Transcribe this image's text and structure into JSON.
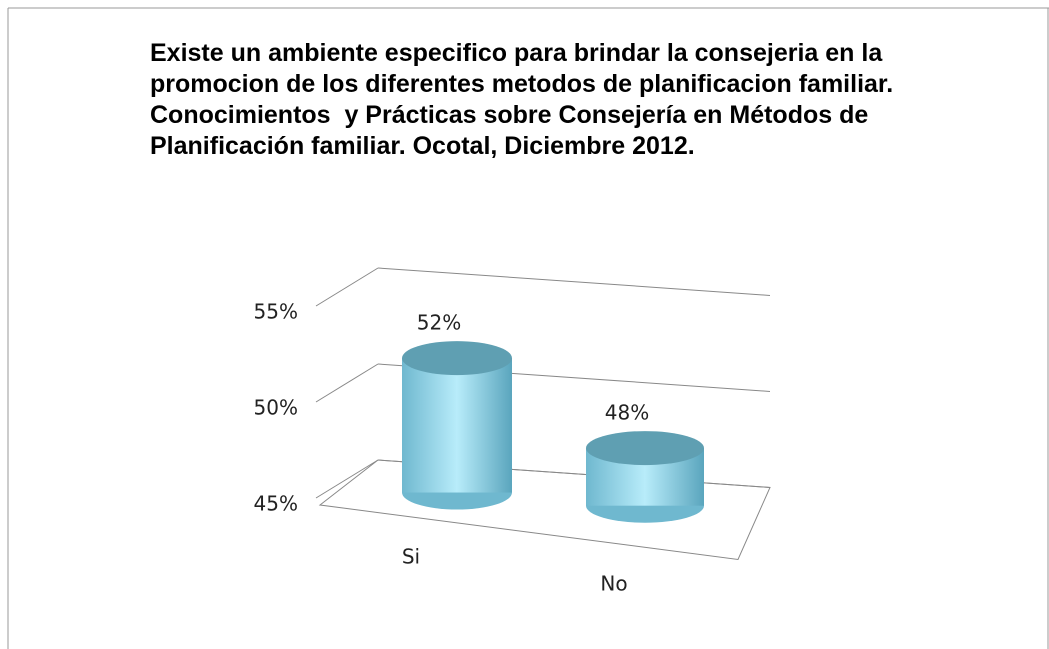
{
  "chart_data": {
    "type": "bar3d",
    "title": "Existe un ambiente especifico para brindar la consejeria en la promocion de los diferentes metodos de planificacion familiar.  Conocimientos  y Prácticas sobre Consejería en Métodos de Planificación familiar. Ocotal, Diciembre 2012.",
    "categories": [
      "Si",
      "No"
    ],
    "values": [
      52,
      48
    ],
    "value_labels": [
      "52%",
      "48%"
    ],
    "color": "#8fd3e8",
    "ylim": [
      45,
      55
    ],
    "yticks": [
      {
        "value": 45,
        "label": "45%"
      },
      {
        "value": 50,
        "label": "50%"
      },
      {
        "value": 55,
        "label": "55%"
      }
    ],
    "grid": true
  }
}
